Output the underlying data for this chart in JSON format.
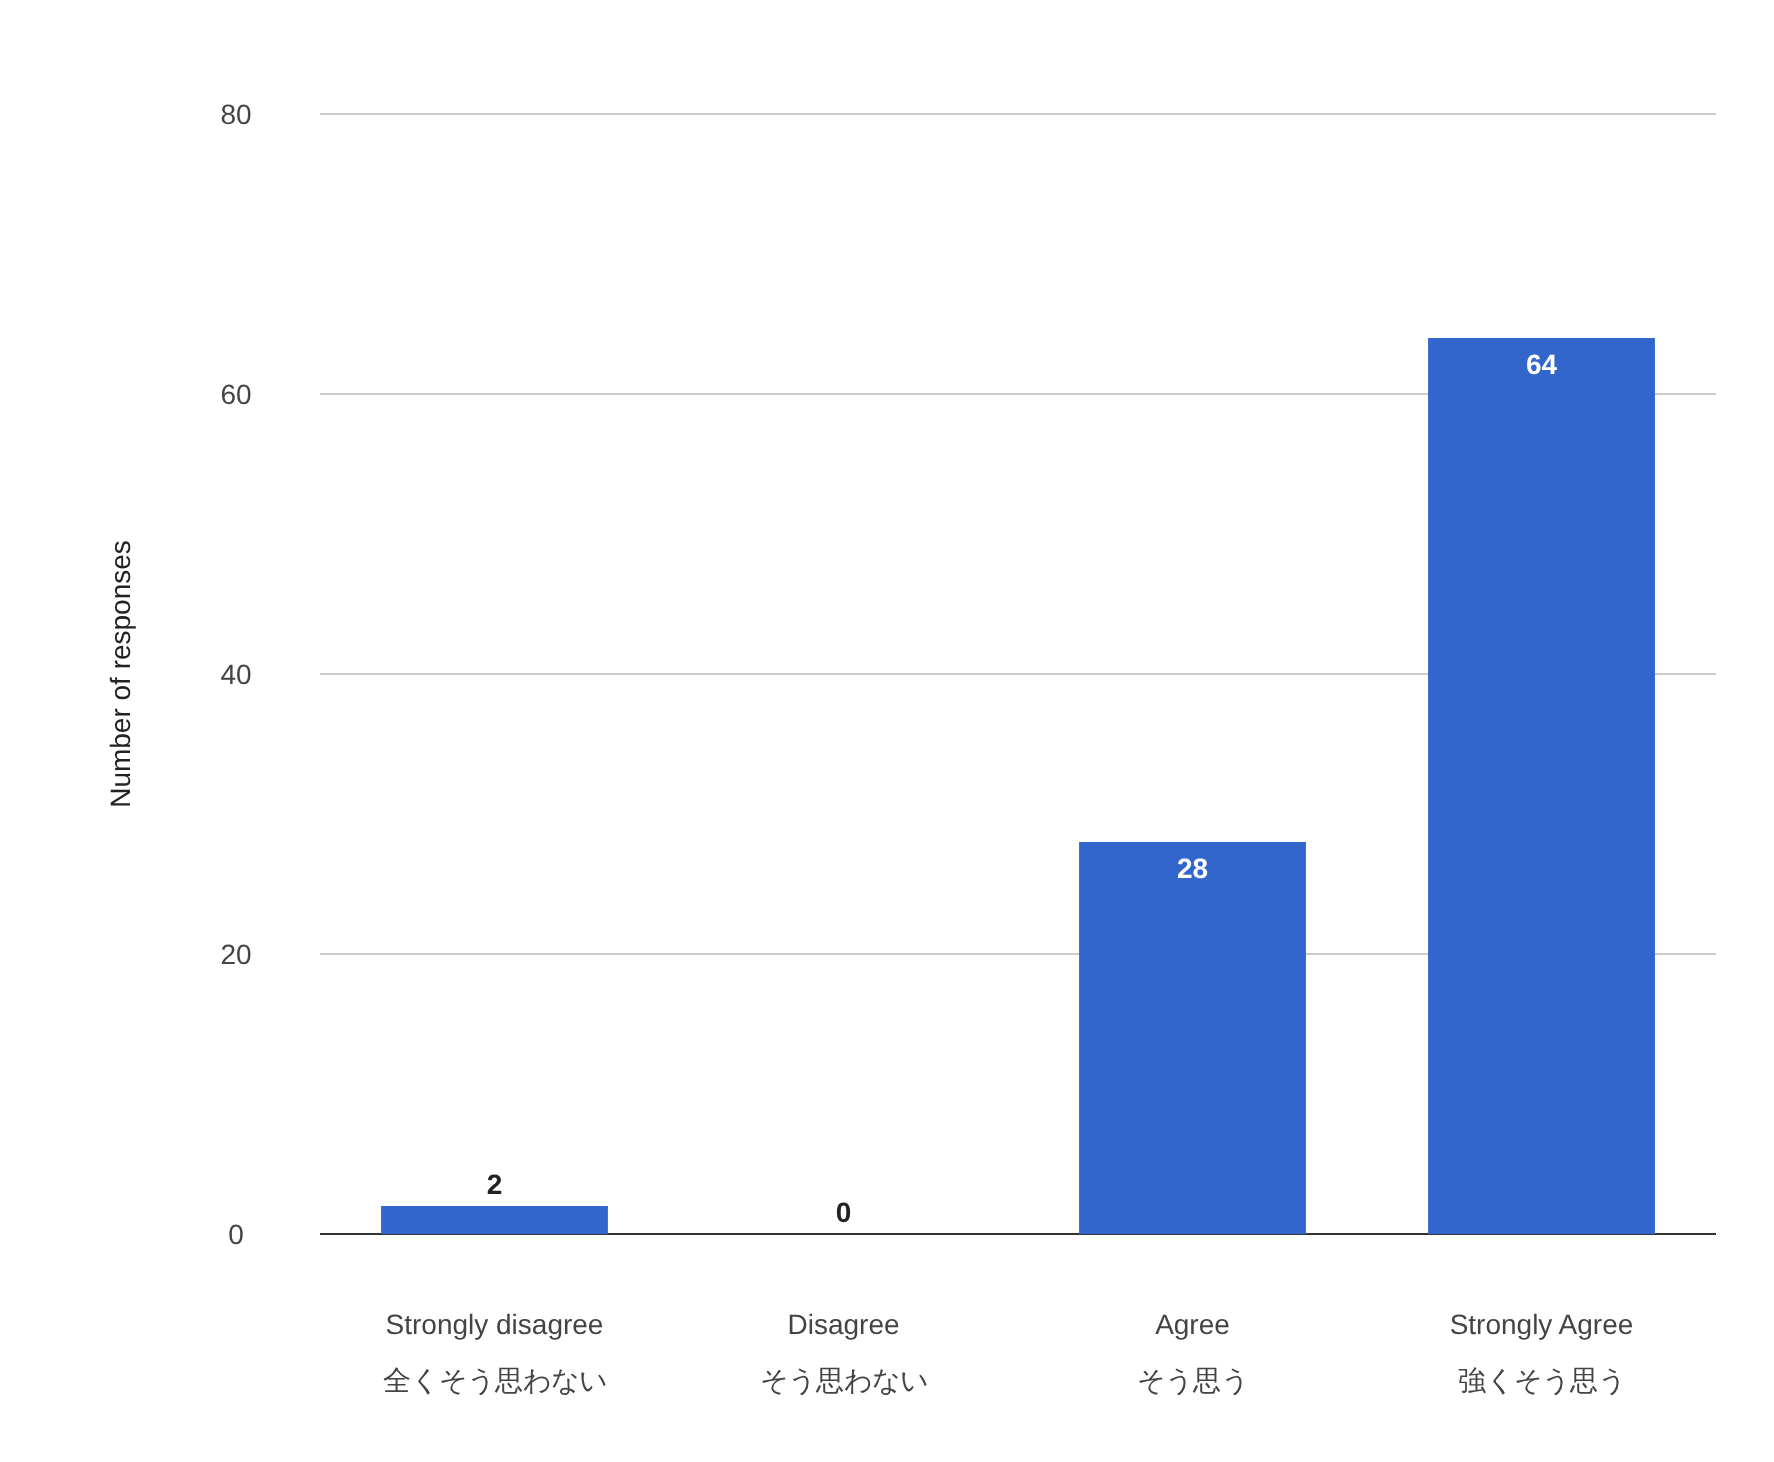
{
  "chart_data": {
    "type": "bar",
    "ylabel": "Number of responses",
    "categories": [
      "Strongly disagree\n全くそう思わない",
      "Disagree\nそう思わない",
      "Agree\nそう思う",
      "Strongly Agree\n強くそう思う"
    ],
    "values": [
      2,
      0,
      28,
      64
    ],
    "color": "#3366cc",
    "ylim": [
      0,
      80
    ],
    "yticks": [
      0,
      20,
      40,
      60,
      80
    ],
    "grid": "y",
    "data_labels": true
  }
}
